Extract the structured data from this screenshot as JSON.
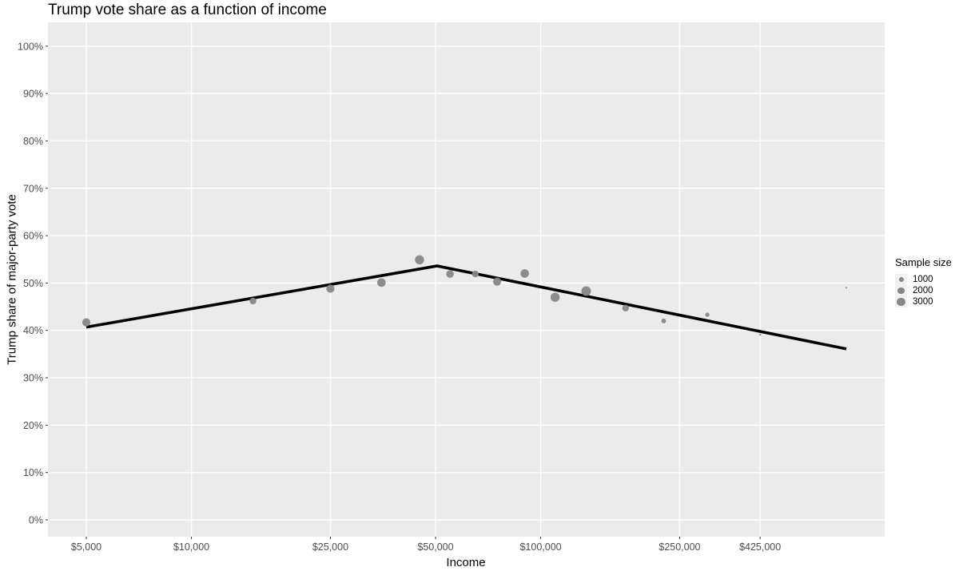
{
  "title": "Trump vote share as a function of income",
  "colors": {
    "page_background": "#ffffff",
    "panel_background": "#ebebeb",
    "gridline": "#ffffff",
    "point_fill": "#878787",
    "trend_line": "#000000",
    "tick_label": "#4d4d4d",
    "tick_mark": "#333333",
    "axis_title": "#000000",
    "legend_key_background": "#f1f1f1"
  },
  "chart_data": {
    "type": "scatter",
    "title": "Trump vote share as a function of income",
    "xlabel": "Income",
    "ylabel": "Trump share of major-party vote",
    "x_scale": "log10",
    "xlim": [
      3900,
      966000
    ],
    "ylim": [
      0,
      100
    ],
    "grid": true,
    "legend_position": "right",
    "x_ticks": [
      {
        "value": 5000,
        "label": "$5,000"
      },
      {
        "value": 10000,
        "label": "$10,000"
      },
      {
        "value": 25000,
        "label": "$25,000"
      },
      {
        "value": 50000,
        "label": "$50,000"
      },
      {
        "value": 100000,
        "label": "$100,000"
      },
      {
        "value": 250000,
        "label": "$250,000"
      },
      {
        "value": 425000,
        "label": "$425,000"
      }
    ],
    "y_ticks": [
      {
        "value": 0,
        "label": "0%"
      },
      {
        "value": 10,
        "label": "10%"
      },
      {
        "value": 20,
        "label": "20%"
      },
      {
        "value": 30,
        "label": "30%"
      },
      {
        "value": 40,
        "label": "40%"
      },
      {
        "value": 50,
        "label": "50%"
      },
      {
        "value": 60,
        "label": "60%"
      },
      {
        "value": 70,
        "label": "70%"
      },
      {
        "value": 80,
        "label": "80%"
      },
      {
        "value": 90,
        "label": "90%"
      },
      {
        "value": 100,
        "label": "100%"
      }
    ],
    "points": [
      {
        "income": 5000,
        "trump_share_pct": 41.7,
        "sample_size": 3000
      },
      {
        "income": 15000,
        "trump_share_pct": 46.2,
        "sample_size": 2000
      },
      {
        "income": 25000,
        "trump_share_pct": 48.8,
        "sample_size": 3000
      },
      {
        "income": 35000,
        "trump_share_pct": 50.1,
        "sample_size": 3300
      },
      {
        "income": 45000,
        "trump_share_pct": 54.9,
        "sample_size": 3800
      },
      {
        "income": 55000,
        "trump_share_pct": 51.9,
        "sample_size": 2600
      },
      {
        "income": 65000,
        "trump_share_pct": 51.9,
        "sample_size": 2000
      },
      {
        "income": 75000,
        "trump_share_pct": 50.3,
        "sample_size": 3000
      },
      {
        "income": 90000,
        "trump_share_pct": 52.0,
        "sample_size": 3300
      },
      {
        "income": 110000,
        "trump_share_pct": 47.0,
        "sample_size": 3800
      },
      {
        "income": 135000,
        "trump_share_pct": 48.3,
        "sample_size": 4200
      },
      {
        "income": 175000,
        "trump_share_pct": 44.7,
        "sample_size": 2000
      },
      {
        "income": 225000,
        "trump_share_pct": 42.0,
        "sample_size": 1000
      },
      {
        "income": 300000,
        "trump_share_pct": 43.3,
        "sample_size": 800
      },
      {
        "income": 425000,
        "trump_share_pct": 39.1,
        "sample_size": 150
      },
      {
        "income": 750000,
        "trump_share_pct": 49.0,
        "sample_size": 100
      }
    ],
    "trend_line": [
      {
        "income": 5000,
        "trump_share_pct": 40.7
      },
      {
        "income": 50500,
        "trump_share_pct": 53.6
      },
      {
        "income": 750000,
        "trump_share_pct": 36.1
      }
    ],
    "size_legend": {
      "title": "Sample size",
      "entries": [
        "1000",
        "2000",
        "3000"
      ],
      "entry_values": [
        1000,
        2000,
        3000
      ]
    }
  }
}
